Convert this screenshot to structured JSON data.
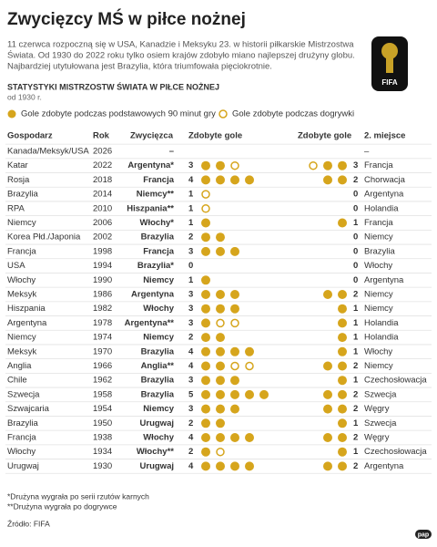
{
  "header": {
    "title": "Zwycięzcy MŚ w piłce nożnej",
    "intro": [
      "11 czerwca rozpoczną się w USA, Kanadzie i Meksyku 23. w historii piłkarskie Mistrzostwa",
      "Świata. Od 1930 do 2022 roku tylko osiem krajów zdobyło miano najlepszej drużyny globu.",
      "Najbardziej utytułowana jest Brazylia, która triumfowała pięciokrotnie."
    ],
    "logo_text": "FIFA"
  },
  "section": {
    "title": "STATYSTYKI MISTRZOSTW ŚWIATA W PIŁCE NOŻNEJ",
    "subtitle": "od 1930 r."
  },
  "legend": {
    "regular": "Gole zdobyte podczas podstawowych 90 minut gry",
    "extra": "Gole zdobyte podczas dogrywki"
  },
  "table": {
    "columns": [
      "Gospodarz",
      "Rok",
      "Zwycięzca",
      "Zdobyte gole",
      "Zdobyte gole",
      "2. miejsce"
    ],
    "rows": [
      {
        "host": "Kanada/Meksyk/USA",
        "year": 2026,
        "winner": "–",
        "winner_goals": null,
        "winner_regular": null,
        "winner_extra": null,
        "runner_up_goals": null,
        "runner_up_regular": null,
        "runner_up_extra": null,
        "runner_up": "–"
      },
      {
        "host": "Katar",
        "year": 2022,
        "winner": "Argentyna*",
        "winner_goals": 3,
        "winner_regular": 2,
        "winner_extra": 1,
        "runner_up_goals": 3,
        "runner_up_regular": 2,
        "runner_up_extra": 1,
        "runner_up": "Francja"
      },
      {
        "host": "Rosja",
        "year": 2018,
        "winner": "Francja",
        "winner_goals": 4,
        "winner_regular": 4,
        "winner_extra": 0,
        "runner_up_goals": 2,
        "runner_up_regular": 2,
        "runner_up_extra": 0,
        "runner_up": "Chorwacja"
      },
      {
        "host": "Brazylia",
        "year": 2014,
        "winner": "Niemcy**",
        "winner_goals": 1,
        "winner_regular": 0,
        "winner_extra": 1,
        "runner_up_goals": 0,
        "runner_up_regular": 0,
        "runner_up_extra": 0,
        "runner_up": "Argentyna"
      },
      {
        "host": "RPA",
        "year": 2010,
        "winner": "Hiszpania**",
        "winner_goals": 1,
        "winner_regular": 0,
        "winner_extra": 1,
        "runner_up_goals": 0,
        "runner_up_regular": 0,
        "runner_up_extra": 0,
        "runner_up": "Holandia"
      },
      {
        "host": "Niemcy",
        "year": 2006,
        "winner": "Włochy*",
        "winner_goals": 1,
        "winner_regular": 1,
        "winner_extra": 0,
        "runner_up_goals": 1,
        "runner_up_regular": 1,
        "runner_up_extra": 0,
        "runner_up": "Francja"
      },
      {
        "host": "Korea Płd./Japonia",
        "year": 2002,
        "winner": "Brazylia",
        "winner_goals": 2,
        "winner_regular": 2,
        "winner_extra": 0,
        "runner_up_goals": 0,
        "runner_up_regular": 0,
        "runner_up_extra": 0,
        "runner_up": "Niemcy"
      },
      {
        "host": "Francja",
        "year": 1998,
        "winner": "Francja",
        "winner_goals": 3,
        "winner_regular": 3,
        "winner_extra": 0,
        "runner_up_goals": 0,
        "runner_up_regular": 0,
        "runner_up_extra": 0,
        "runner_up": "Brazylia"
      },
      {
        "host": "USA",
        "year": 1994,
        "winner": "Brazylia*",
        "winner_goals": 0,
        "winner_regular": 0,
        "winner_extra": 0,
        "runner_up_goals": 0,
        "runner_up_regular": 0,
        "runner_up_extra": 0,
        "runner_up": "Włochy"
      },
      {
        "host": "Włochy",
        "year": 1990,
        "winner": "Niemcy",
        "winner_goals": 1,
        "winner_regular": 1,
        "winner_extra": 0,
        "runner_up_goals": 0,
        "runner_up_regular": 0,
        "runner_up_extra": 0,
        "runner_up": "Argentyna"
      },
      {
        "host": "Meksyk",
        "year": 1986,
        "winner": "Argentyna",
        "winner_goals": 3,
        "winner_regular": 3,
        "winner_extra": 0,
        "runner_up_goals": 2,
        "runner_up_regular": 2,
        "runner_up_extra": 0,
        "runner_up": "Niemcy"
      },
      {
        "host": "Hiszpania",
        "year": 1982,
        "winner": "Włochy",
        "winner_goals": 3,
        "winner_regular": 3,
        "winner_extra": 0,
        "runner_up_goals": 1,
        "runner_up_regular": 1,
        "runner_up_extra": 0,
        "runner_up": "Niemcy"
      },
      {
        "host": "Argentyna",
        "year": 1978,
        "winner": "Argentyna**",
        "winner_goals": 3,
        "winner_regular": 1,
        "winner_extra": 2,
        "runner_up_goals": 1,
        "runner_up_regular": 1,
        "runner_up_extra": 0,
        "runner_up": "Holandia"
      },
      {
        "host": "Niemcy",
        "year": 1974,
        "winner": "Niemcy",
        "winner_goals": 2,
        "winner_regular": 2,
        "winner_extra": 0,
        "runner_up_goals": 1,
        "runner_up_regular": 1,
        "runner_up_extra": 0,
        "runner_up": "Holandia"
      },
      {
        "host": "Meksyk",
        "year": 1970,
        "winner": "Brazylia",
        "winner_goals": 4,
        "winner_regular": 4,
        "winner_extra": 0,
        "runner_up_goals": 1,
        "runner_up_regular": 1,
        "runner_up_extra": 0,
        "runner_up": "Włochy"
      },
      {
        "host": "Anglia",
        "year": 1966,
        "winner": "Anglia**",
        "winner_goals": 4,
        "winner_regular": 2,
        "winner_extra": 2,
        "runner_up_goals": 2,
        "runner_up_regular": 2,
        "runner_up_extra": 0,
        "runner_up": "Niemcy"
      },
      {
        "host": "Chile",
        "year": 1962,
        "winner": "Brazylia",
        "winner_goals": 3,
        "winner_regular": 3,
        "winner_extra": 0,
        "runner_up_goals": 1,
        "runner_up_regular": 1,
        "runner_up_extra": 0,
        "runner_up": "Czechosłowacja"
      },
      {
        "host": "Szwecja",
        "year": 1958,
        "winner": "Brazylia",
        "winner_goals": 5,
        "winner_regular": 5,
        "winner_extra": 0,
        "runner_up_goals": 2,
        "runner_up_regular": 2,
        "runner_up_extra": 0,
        "runner_up": "Szwecja"
      },
      {
        "host": "Szwajcaria",
        "year": 1954,
        "winner": "Niemcy",
        "winner_goals": 3,
        "winner_regular": 3,
        "winner_extra": 0,
        "runner_up_goals": 2,
        "runner_up_regular": 2,
        "runner_up_extra": 0,
        "runner_up": "Węgry"
      },
      {
        "host": "Brazylia",
        "year": 1950,
        "winner": "Urugwaj",
        "winner_goals": 2,
        "winner_regular": 2,
        "winner_extra": 0,
        "runner_up_goals": 1,
        "runner_up_regular": 1,
        "runner_up_extra": 0,
        "runner_up": "Szwecja"
      },
      {
        "host": "Francja",
        "year": 1938,
        "winner": "Włochy",
        "winner_goals": 4,
        "winner_regular": 4,
        "winner_extra": 0,
        "runner_up_goals": 2,
        "runner_up_regular": 2,
        "runner_up_extra": 0,
        "runner_up": "Węgry"
      },
      {
        "host": "Włochy",
        "year": 1934,
        "winner": "Włochy**",
        "winner_goals": 2,
        "winner_regular": 1,
        "winner_extra": 1,
        "runner_up_goals": 1,
        "runner_up_regular": 1,
        "runner_up_extra": 0,
        "runner_up": "Czechosłowacja"
      },
      {
        "host": "Urugwaj",
        "year": 1930,
        "winner": "Urugwaj",
        "winner_goals": 4,
        "winner_regular": 4,
        "winner_extra": 0,
        "runner_up_goals": 2,
        "runner_up_regular": 2,
        "runner_up_extra": 0,
        "runner_up": "Argentyna"
      }
    ]
  },
  "footnotes": [
    "*Drużyna wygrała po serii rzutów karnych",
    "**Drużyna wygrała po dogrywce"
  ],
  "source": "Źródło: FIFA",
  "agency": "pap"
}
